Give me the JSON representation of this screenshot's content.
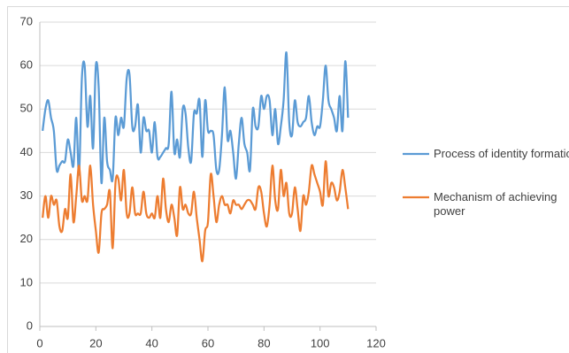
{
  "chart_data": {
    "type": "line",
    "smooth": true,
    "x": [
      1,
      2,
      3,
      4,
      5,
      6,
      7,
      8,
      9,
      10,
      11,
      12,
      13,
      14,
      15,
      16,
      17,
      18,
      19,
      20,
      21,
      22,
      23,
      24,
      25,
      26,
      27,
      28,
      29,
      30,
      31,
      32,
      33,
      34,
      35,
      36,
      37,
      38,
      39,
      40,
      41,
      42,
      43,
      44,
      45,
      46,
      47,
      48,
      49,
      50,
      51,
      52,
      53,
      54,
      55,
      56,
      57,
      58,
      59,
      60,
      61,
      62,
      63,
      64,
      65,
      66,
      67,
      68,
      69,
      70,
      71,
      72,
      73,
      74,
      75,
      76,
      77,
      78,
      79,
      80,
      81,
      82,
      83,
      84,
      85,
      86,
      87,
      88,
      89,
      90,
      91,
      92,
      93,
      94,
      95,
      96,
      97,
      98,
      99,
      100,
      101,
      102,
      103,
      104,
      105,
      106,
      107,
      108,
      109,
      110
    ],
    "series": [
      {
        "name": "Process of identity formation",
        "color": "#5b9bd5",
        "values": [
          45,
          50,
          52,
          48,
          45,
          36,
          37,
          38,
          38,
          43,
          40,
          37,
          48,
          35,
          57,
          60,
          46,
          53,
          41,
          60,
          55,
          33,
          48,
          38,
          36,
          34,
          48,
          44,
          48,
          46,
          57,
          58,
          46,
          46,
          51,
          40,
          48,
          45,
          45,
          40,
          47,
          39,
          39,
          40,
          41,
          42,
          54,
          40,
          43,
          39,
          50,
          49,
          41,
          38,
          49,
          49,
          52,
          39,
          52,
          45,
          45,
          44,
          36,
          36,
          44,
          55,
          43,
          45,
          40,
          34,
          42,
          48,
          42,
          40,
          36,
          50,
          46,
          46,
          53,
          50,
          53,
          52,
          44,
          50,
          42,
          46,
          52,
          63,
          47,
          44,
          52,
          47,
          46,
          47,
          48,
          53,
          47,
          44,
          46,
          46,
          52,
          60,
          52,
          50,
          48,
          45,
          53,
          45,
          61,
          48
        ]
      },
      {
        "name": "Mechanism of achieving power",
        "color": "#ed7d31",
        "values": [
          25,
          30,
          25,
          30,
          28,
          29,
          23,
          22,
          27,
          25,
          35,
          24,
          30,
          37,
          29,
          30,
          29,
          37,
          28,
          22,
          17,
          26,
          27,
          28,
          31,
          18,
          33,
          34,
          29,
          36,
          26,
          26,
          32,
          26,
          26,
          26,
          31,
          26,
          25,
          26,
          25,
          30,
          25,
          34,
          27,
          24,
          28,
          25,
          21,
          32,
          27,
          28,
          26,
          26,
          31,
          25,
          20,
          15,
          22,
          24,
          35,
          30,
          24,
          28,
          30,
          28,
          28,
          26,
          29,
          28,
          28,
          27,
          28,
          29,
          29,
          28,
          27,
          32,
          31,
          26,
          23,
          28,
          37,
          29,
          27,
          36,
          30,
          33,
          26,
          26,
          32,
          27,
          22,
          30,
          28,
          31,
          37,
          35,
          33,
          31,
          28,
          38,
          30,
          33,
          32,
          29,
          31,
          36,
          32,
          27
        ]
      }
    ],
    "xlim": [
      0,
      120
    ],
    "xticks": [
      0,
      20,
      40,
      60,
      80,
      100,
      120
    ],
    "ylim": [
      0,
      70
    ],
    "yticks": [
      0,
      10,
      20,
      30,
      40,
      50,
      60,
      70
    ],
    "grid": true,
    "legend": "right"
  }
}
